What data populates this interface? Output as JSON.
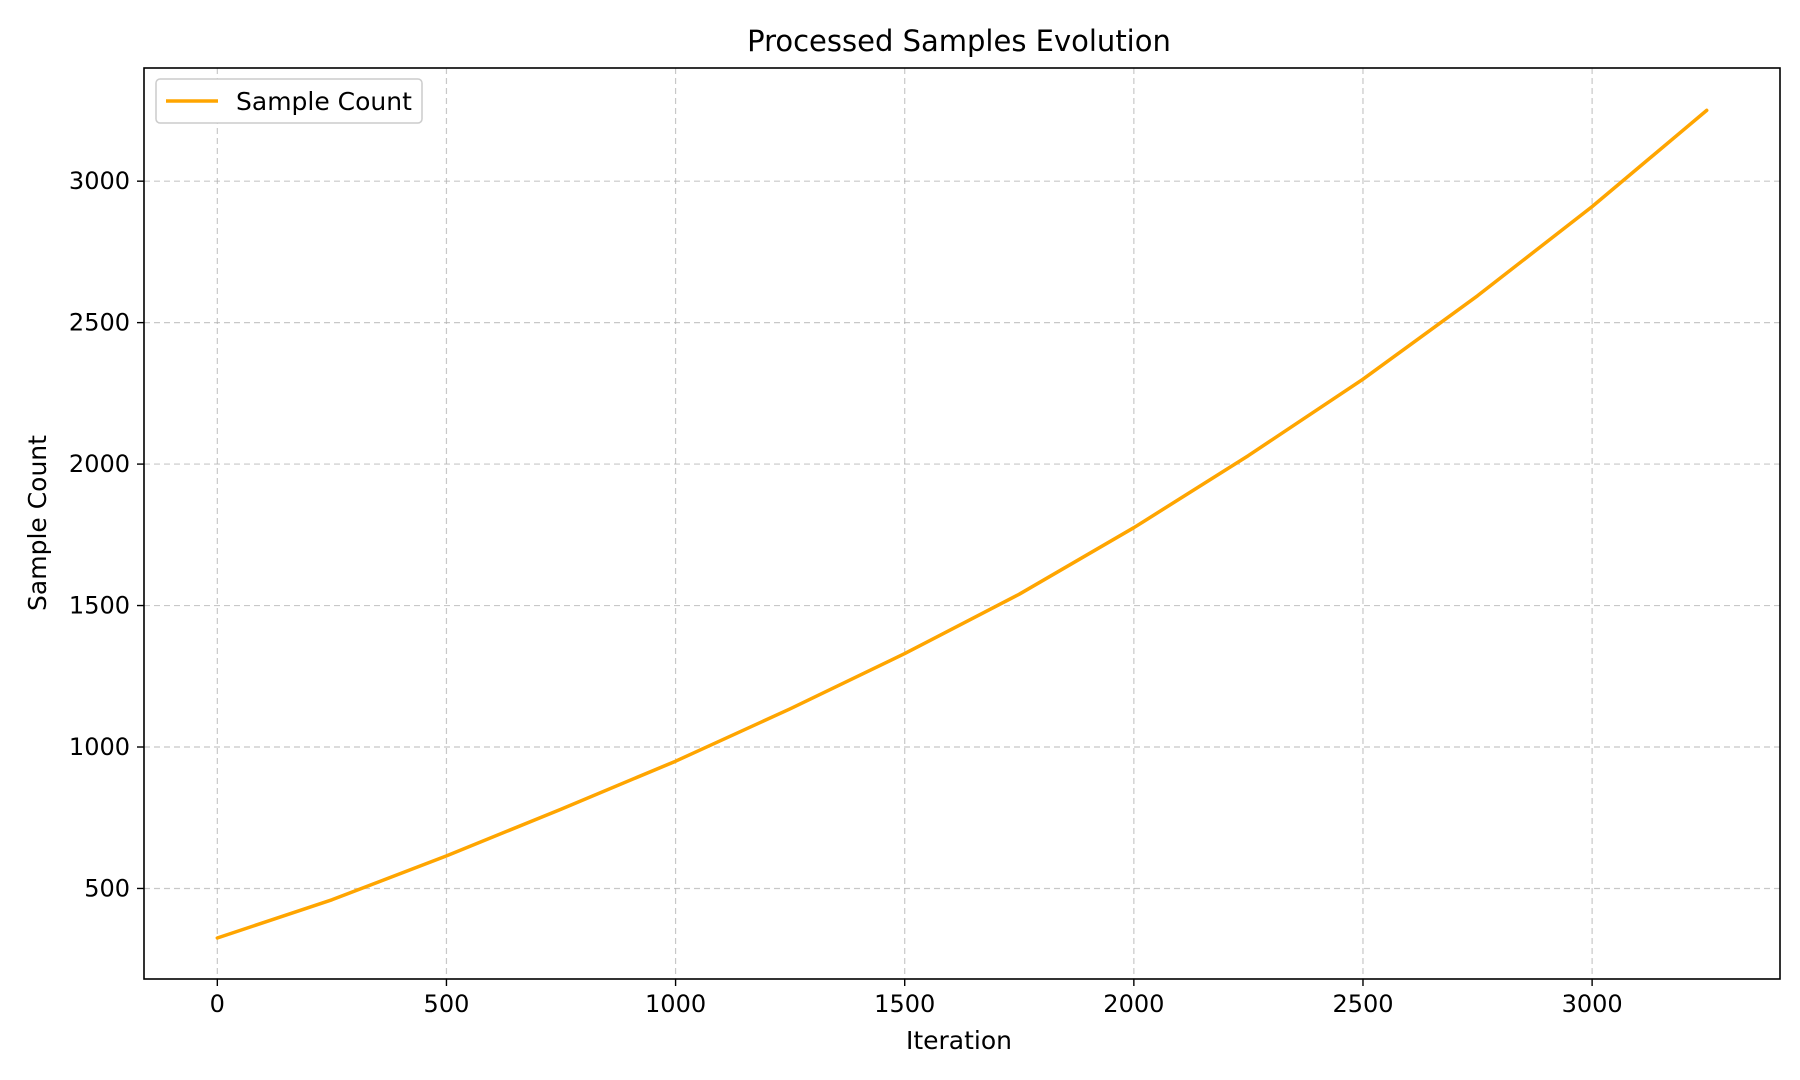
{
  "chart_data": {
    "type": "line",
    "title": "Processed Samples Evolution",
    "xlabel": "Iteration",
    "ylabel": "Sample Count",
    "xlim": [
      -160,
      3410
    ],
    "ylim": [
      180,
      3400
    ],
    "x_ticks": [
      0,
      500,
      1000,
      1500,
      2000,
      2500,
      3000
    ],
    "y_ticks": [
      500,
      1000,
      1500,
      2000,
      2500,
      3000
    ],
    "grid": true,
    "legend_position": "upper left",
    "series": [
      {
        "name": "Sample Count",
        "color": "#FFA500",
        "x": [
          0,
          250,
          500,
          750,
          1000,
          1250,
          1500,
          1750,
          2000,
          2250,
          2500,
          2750,
          3000,
          3250
        ],
        "y": [
          325,
          460,
          615,
          780,
          950,
          1135,
          1330,
          1540,
          1775,
          2030,
          2300,
          2595,
          2910,
          3250
        ]
      }
    ]
  }
}
